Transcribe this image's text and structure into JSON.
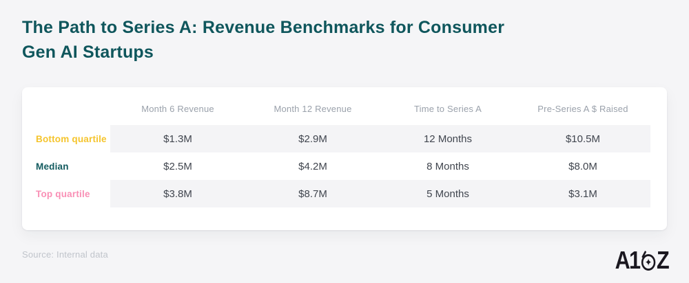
{
  "header": {
    "title_line1": "The Path to Series A: Revenue Benchmarks for Consumer",
    "title_line2": "Gen AI Startups"
  },
  "chart_data": {
    "type": "table",
    "title": "The Path to Series A: Revenue Benchmarks for Consumer Gen AI Startups",
    "columns": [
      "Month 6 Revenue",
      "Month 12 Revenue",
      "Time to Series A",
      "Pre-Series A $ Raised"
    ],
    "rows": [
      {
        "label": "Bottom quartile",
        "values": [
          "$1.3M",
          "$2.9M",
          "12 Months",
          "$10.5M"
        ]
      },
      {
        "label": "Median",
        "values": [
          "$2.5M",
          "$4.2M",
          "8 Months",
          "$8.0M"
        ]
      },
      {
        "label": "Top quartile",
        "values": [
          "$3.8M",
          "$8.7M",
          "5 Months",
          "$3.1M"
        ]
      }
    ],
    "layout": {
      "striped_rows": [
        0,
        2
      ],
      "legend": "none",
      "grid": "off"
    }
  },
  "footer": {
    "source": "Source: Internal data",
    "logo": {
      "text": "A16Z",
      "part1": "A1",
      "part2": "Z",
      "star_glyph": "✦"
    }
  },
  "colors": {
    "title_teal": "#0f565c",
    "bottom_quartile_yellow": "#f5c42c",
    "median_teal": "#125a5e",
    "top_quartile_pink": "#f98fb5",
    "row_stripe_gray": "#f4f4f6",
    "page_background": "#f5f5f7",
    "card_background": "#ffffff",
    "header_text_gray": "#9aa1ab",
    "value_text_gray": "#40454e",
    "source_text_gray": "#c0c4cb",
    "logo_black": "#1b1820"
  }
}
